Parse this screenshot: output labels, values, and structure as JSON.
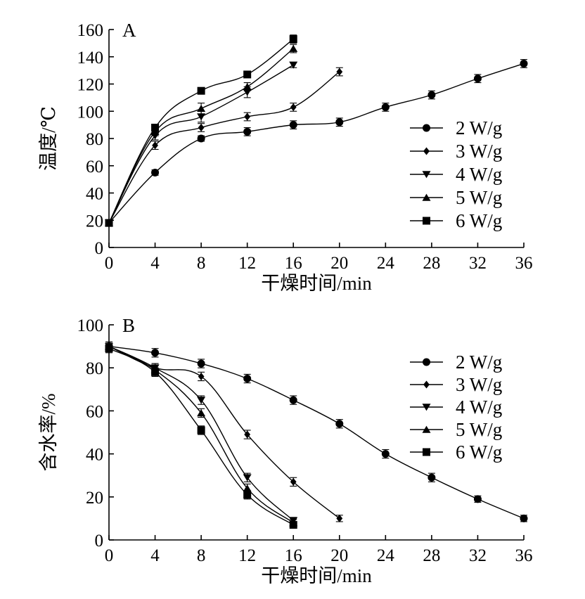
{
  "chart_data": [
    {
      "type": "line",
      "panel": "A",
      "xlabel": "干燥时间/min",
      "ylabel": "温度/℃",
      "xlim": [
        0,
        36
      ],
      "ylim": [
        0,
        160
      ],
      "xticks": [
        0,
        4,
        8,
        12,
        16,
        20,
        24,
        28,
        32,
        36
      ],
      "yticks": [
        0,
        20,
        40,
        60,
        80,
        100,
        120,
        140,
        160
      ],
      "legend_position": "right",
      "series": [
        {
          "name": "2 W/g",
          "marker": "circle",
          "x": [
            0,
            4,
            8,
            12,
            16,
            20,
            24,
            28,
            32,
            36
          ],
          "y": [
            18,
            55,
            80,
            85,
            90,
            92,
            103,
            112,
            124,
            135
          ],
          "err": [
            2,
            2,
            2,
            3,
            3,
            3,
            3,
            3,
            3,
            3
          ]
        },
        {
          "name": "3 W/g",
          "marker": "diamond",
          "x": [
            0,
            4,
            8,
            12,
            16,
            20
          ],
          "y": [
            18,
            75,
            88,
            96,
            103,
            129
          ],
          "err": [
            2,
            3,
            3,
            3,
            3,
            3
          ]
        },
        {
          "name": "4 W/g",
          "marker": "triangle-down",
          "x": [
            0,
            4,
            8,
            12,
            16
          ],
          "y": [
            18,
            82,
            96,
            114,
            134
          ],
          "err": [
            2,
            3,
            4,
            4,
            2
          ]
        },
        {
          "name": "5 W/g",
          "marker": "triangle-up",
          "x": [
            0,
            4,
            8,
            12,
            16
          ],
          "y": [
            18,
            85,
            102,
            118,
            146
          ],
          "err": [
            2,
            3,
            4,
            3,
            3
          ]
        },
        {
          "name": "6 W/g",
          "marker": "square",
          "x": [
            0,
            4,
            8,
            12,
            16
          ],
          "y": [
            18,
            88,
            115,
            127,
            153
          ],
          "err": [
            2,
            2,
            2,
            2,
            3
          ]
        }
      ]
    },
    {
      "type": "line",
      "panel": "B",
      "xlabel": "干燥时间/min",
      "ylabel": "含水率/%",
      "xlim": [
        0,
        36
      ],
      "ylim": [
        0,
        100
      ],
      "xticks": [
        0,
        4,
        8,
        12,
        16,
        20,
        24,
        28,
        32,
        36
      ],
      "yticks": [
        0,
        20,
        40,
        60,
        80,
        100
      ],
      "legend_position": "right",
      "series": [
        {
          "name": "2 W/g",
          "marker": "circle",
          "x": [
            0,
            4,
            8,
            12,
            16,
            20,
            24,
            28,
            32,
            36
          ],
          "y": [
            90,
            87,
            82,
            75,
            65,
            54,
            40,
            29,
            19,
            10
          ],
          "err": [
            2,
            2,
            2,
            2,
            2,
            2,
            2,
            2,
            1.5,
            1.5
          ]
        },
        {
          "name": "3 W/g",
          "marker": "diamond",
          "x": [
            0,
            4,
            8,
            12,
            16,
            20
          ],
          "y": [
            90,
            80,
            76,
            49,
            27,
            10
          ],
          "err": [
            2,
            2,
            2,
            2,
            2,
            1.5
          ]
        },
        {
          "name": "4 W/g",
          "marker": "triangle-down",
          "x": [
            0,
            4,
            8,
            12,
            16
          ],
          "y": [
            90,
            80,
            65,
            29,
            9
          ],
          "err": [
            2,
            2,
            2,
            2,
            1.5
          ]
        },
        {
          "name": "5 W/g",
          "marker": "triangle-up",
          "x": [
            0,
            4,
            8,
            12,
            16
          ],
          "y": [
            90,
            79,
            59,
            24,
            8
          ],
          "err": [
            2,
            2,
            2,
            2,
            1.5
          ]
        },
        {
          "name": "6 W/g",
          "marker": "square",
          "x": [
            0,
            4,
            8,
            12,
            16
          ],
          "y": [
            89,
            78,
            51,
            21,
            7
          ],
          "err": [
            2,
            2,
            2,
            2,
            1.5
          ]
        }
      ]
    }
  ]
}
